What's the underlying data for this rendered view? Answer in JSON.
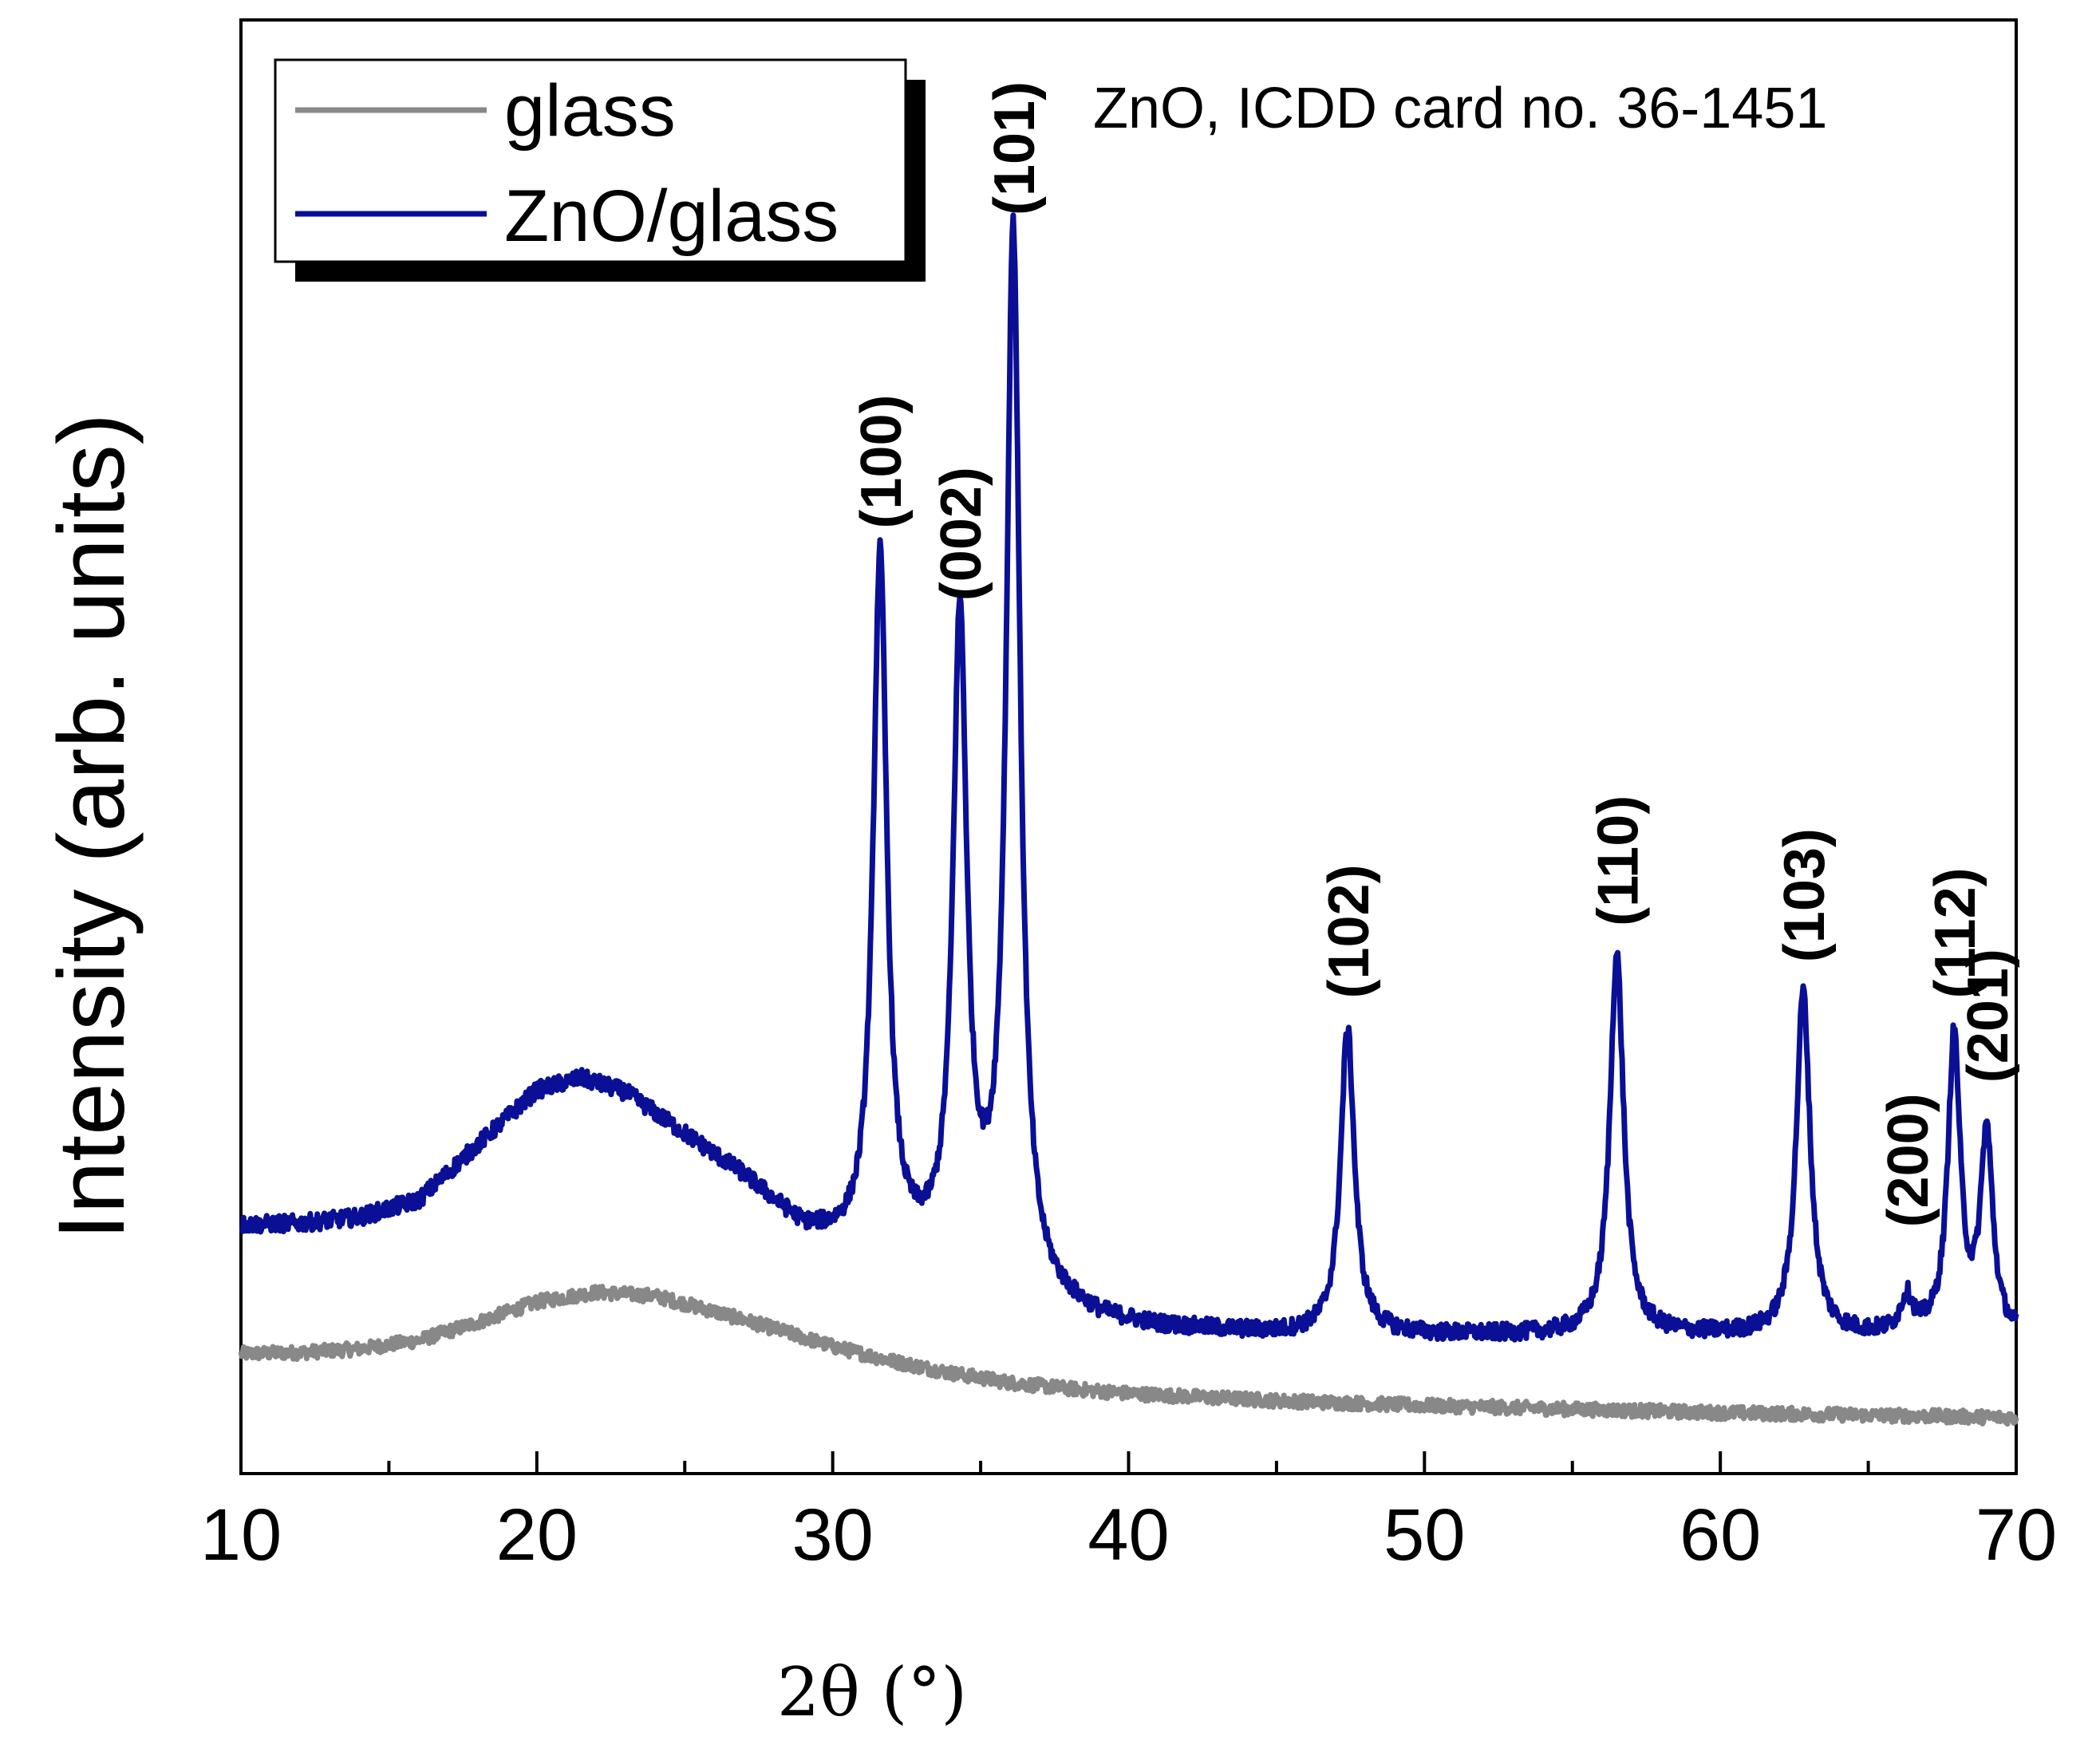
{
  "chart_data": {
    "type": "line",
    "title": "",
    "xlabel": "2θ (°)",
    "ylabel": "Intensity (arb. units)",
    "xlim": [
      10,
      70
    ],
    "ylim": [
      0,
      100
    ],
    "x_ticks": [
      10,
      20,
      30,
      40,
      50,
      60,
      70
    ],
    "x_tick_labels": [
      "10",
      "20",
      "30",
      "40",
      "50",
      "60",
      "70"
    ],
    "grid": false,
    "legend_position": "top-left",
    "annotation": "ZnO, ICDD card no. 36-1451",
    "series": [
      {
        "name": "glass",
        "color": "#888888",
        "baseline": 3.4,
        "points": [
          [
            10,
            7.5
          ],
          [
            12,
            7.6
          ],
          [
            14,
            7.9
          ],
          [
            16,
            8.6
          ],
          [
            18,
            10.1
          ],
          [
            20,
            11.8
          ],
          [
            22,
            12.6
          ],
          [
            24,
            12.3
          ],
          [
            26,
            11.0
          ],
          [
            28,
            9.6
          ],
          [
            30,
            8.1
          ],
          [
            32,
            6.9
          ],
          [
            34,
            5.9
          ],
          [
            36,
            5.1
          ],
          [
            38,
            4.6
          ],
          [
            40,
            4.2
          ],
          [
            45,
            3.6
          ],
          [
            50,
            3.2
          ],
          [
            55,
            2.9
          ],
          [
            60,
            2.6
          ],
          [
            65,
            2.4
          ],
          [
            70,
            2.2
          ]
        ]
      },
      {
        "name": "ZnO/glass",
        "color": "#0a0f96",
        "baseline_points": [
          [
            10,
            18.2
          ],
          [
            12,
            18.3
          ],
          [
            14,
            18.8
          ],
          [
            16,
            20.2
          ],
          [
            18,
            24.8
          ],
          [
            20,
            29.3
          ],
          [
            21.5,
            30.3
          ],
          [
            23,
            29.1
          ],
          [
            25,
            25.6
          ],
          [
            27,
            22.1
          ],
          [
            29,
            17.7
          ],
          [
            31,
            15.9
          ],
          [
            33,
            15.3
          ],
          [
            35,
            14.6
          ],
          [
            37,
            11.8
          ],
          [
            39,
            10.2
          ],
          [
            41,
            9.6
          ],
          [
            45,
            9.1
          ],
          [
            50,
            9.0
          ],
          [
            55,
            9.0
          ],
          [
            60,
            9.0
          ],
          [
            65,
            8.9
          ],
          [
            70,
            8.8
          ]
        ],
        "peaks": [
          {
            "center": 31.6,
            "height": 73.5,
            "width": 0.28
          },
          {
            "center": 34.3,
            "height": 67.6,
            "width": 0.28
          },
          {
            "center": 36.1,
            "height": 100.0,
            "width": 0.28
          },
          {
            "center": 47.4,
            "height": 34.4,
            "width": 0.28
          },
          {
            "center": 56.5,
            "height": 40.6,
            "width": 0.28
          },
          {
            "center": 62.8,
            "height": 37.5,
            "width": 0.28
          },
          {
            "center": 66.3,
            "height": 11.8,
            "width": 0.25
          },
          {
            "center": 67.9,
            "height": 33.5,
            "width": 0.25
          },
          {
            "center": 69.0,
            "height": 25.4,
            "width": 0.25
          }
        ]
      }
    ],
    "peak_labels": [
      {
        "text": "(100)",
        "x": 31.6,
        "y": 74
      },
      {
        "text": "(002)",
        "x": 34.3,
        "y": 68
      },
      {
        "text": "(101)",
        "x": 36.1,
        "y": 100
      },
      {
        "text": "(102)",
        "x": 47.4,
        "y": 35
      },
      {
        "text": "(110)",
        "x": 56.5,
        "y": 41
      },
      {
        "text": "(103)",
        "x": 62.8,
        "y": 38
      },
      {
        "text": "(200)",
        "x": 66.3,
        "y": 16
      },
      {
        "text": "(112)",
        "x": 67.9,
        "y": 35
      },
      {
        "text": "(201)",
        "x": 69.0,
        "y": 28
      }
    ]
  }
}
